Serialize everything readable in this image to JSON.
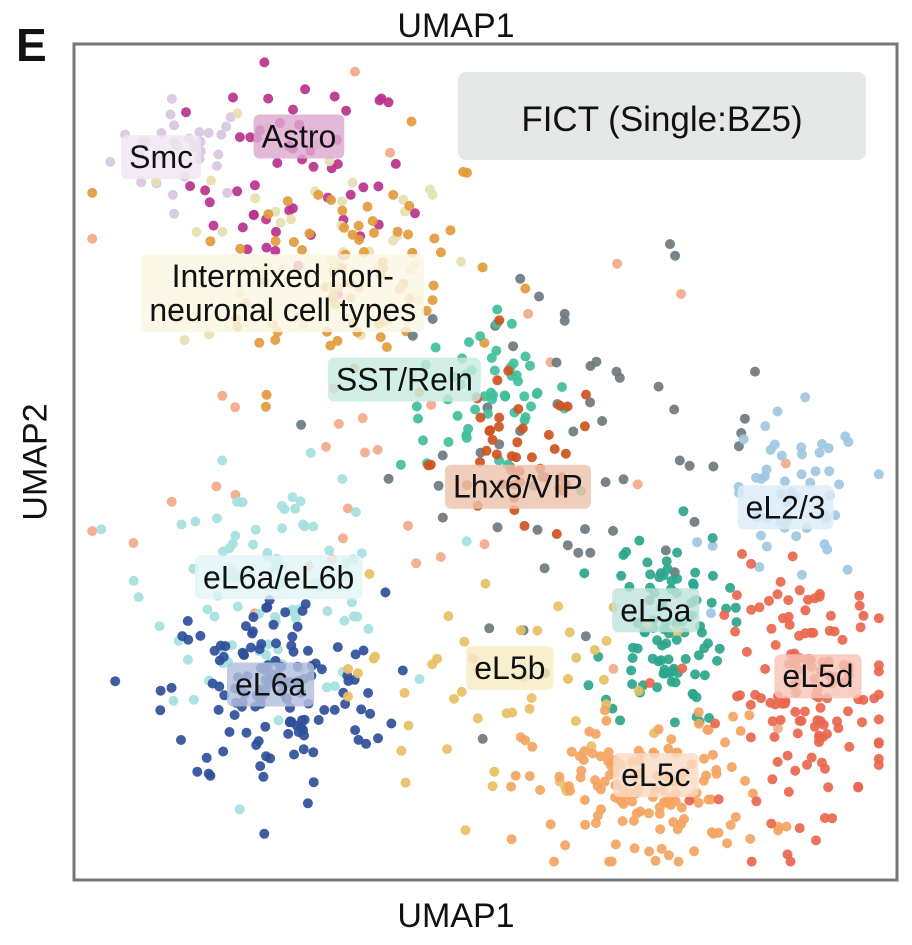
{
  "panel_letter": "E",
  "chart_data": {
    "type": "scatter",
    "title": "FICT (Single:BZ5)",
    "xlabel": "UMAP1",
    "xlabel_top": "UMAP1",
    "ylabel": "UMAP2",
    "xlim": [
      0,
      100
    ],
    "ylim": [
      0,
      100
    ],
    "grid": false,
    "ticks": false,
    "title_box_color": "#e6e8e8",
    "clusters": [
      {
        "name": "Smc",
        "label": "Smc",
        "color": "#d8c6df",
        "label_bg": "#efe5f2",
        "center": [
          13,
          88
        ],
        "spread": [
          6,
          4
        ],
        "n": 30
      },
      {
        "name": "Astro",
        "label": "Astro",
        "color": "#b8338e",
        "label_bg": "#dda8cf",
        "center": [
          27,
          84
        ],
        "spread": [
          9,
          9
        ],
        "n": 55
      },
      {
        "name": "Intermixed",
        "label": "Intermixed non-\nneuronal cell types",
        "color": "#e6e0b0",
        "label_bg": "#faf7e3",
        "center": [
          30,
          76
        ],
        "spread": [
          12,
          10
        ],
        "n": 40
      },
      {
        "name": "Oligo-like",
        "label": "",
        "color": "#e29a3c",
        "label_bg": "",
        "center": [
          33,
          74
        ],
        "spread": [
          13,
          10
        ],
        "n": 70
      },
      {
        "name": "Salmon-scatter",
        "label": "",
        "color": "#f4a98a",
        "label_bg": "",
        "center": [
          35,
          55
        ],
        "spread": [
          25,
          25
        ],
        "n": 45
      },
      {
        "name": "Other-grey",
        "label": "",
        "color": "#6e7880",
        "label_bg": "",
        "center": [
          62,
          52
        ],
        "spread": [
          16,
          14
        ],
        "n": 60
      },
      {
        "name": "SST/Reln",
        "label": "SST/Reln",
        "color": "#3fbf9a",
        "label_bg": "#c8ebe0",
        "center": [
          50,
          58
        ],
        "spread": [
          7,
          6
        ],
        "n": 55
      },
      {
        "name": "Lhx6/VIP",
        "label": "Lhx6/VIP",
        "color": "#cf531f",
        "label_bg": "#eec2ad",
        "center": [
          54,
          50
        ],
        "spread": [
          7,
          7
        ],
        "n": 45
      },
      {
        "name": "eL2/3",
        "label": "eL2/3",
        "color": "#9fc7e3",
        "label_bg": "#dcebf6",
        "center": [
          88,
          45
        ],
        "spread": [
          6,
          7
        ],
        "n": 55
      },
      {
        "name": "eL6a/eL6b",
        "label": "eL6a/eL6b",
        "color": "#a6dfe0",
        "label_bg": "#e2f4f5",
        "center": [
          24,
          35
        ],
        "spread": [
          10,
          9
        ],
        "n": 95
      },
      {
        "name": "eL6a",
        "label": "eL6a",
        "color": "#2f4f9a",
        "label_bg": "#b2bfdd",
        "center": [
          24,
          22
        ],
        "spread": [
          9,
          8
        ],
        "n": 140
      },
      {
        "name": "eL5a",
        "label": "eL5a",
        "color": "#2ba58c",
        "label_bg": "#bfe3dc",
        "center": [
          72,
          30
        ],
        "spread": [
          5,
          8
        ],
        "n": 95
      },
      {
        "name": "eL5b",
        "label": "eL5b",
        "color": "#e8c065",
        "label_bg": "#f7ebc3",
        "center": [
          52,
          22
        ],
        "spread": [
          13,
          10
        ],
        "n": 50
      },
      {
        "name": "eL5c",
        "label": "eL5c",
        "color": "#f4a461",
        "label_bg": "#fadcc6",
        "center": [
          70,
          10
        ],
        "spread": [
          10,
          6
        ],
        "n": 140
      },
      {
        "name": "eL5d",
        "label": "eL5d",
        "color": "#e9674e",
        "label_bg": "#f5c4b8",
        "center": [
          90,
          22
        ],
        "spread": [
          7,
          10
        ],
        "n": 140
      }
    ],
    "labels": [
      {
        "text": "Smc",
        "bg": "#efe5f2",
        "at": [
          10,
          87
        ]
      },
      {
        "text": "Astro",
        "bg": "#dda8cf",
        "at": [
          27,
          89.5
        ]
      },
      {
        "text": "Intermixed non-",
        "text2": "neuronal cell types",
        "bg": "#faf7e3",
        "at": [
          25,
          70.5
        ]
      },
      {
        "text": "SST/Reln",
        "bg": "#c8ebe0",
        "at": [
          40,
          60
        ]
      },
      {
        "text": "Lhx6/VIP",
        "bg": "#eec2ad",
        "at": [
          54,
          47
        ]
      },
      {
        "text": "eL2/3",
        "bg": "#dcebf6",
        "at": [
          87,
          44.5
        ]
      },
      {
        "text": "eL6a/eL6b",
        "bg": "#e2f4f5",
        "at": [
          24.5,
          36
        ]
      },
      {
        "text": "eL6a",
        "bg": "#b2bfdd",
        "at": [
          23.5,
          23
        ]
      },
      {
        "text": "eL5a",
        "bg": "#bfe3dc",
        "at": [
          71,
          32
        ]
      },
      {
        "text": "eL5b",
        "bg": "#f7ebc3",
        "at": [
          53,
          25
        ]
      },
      {
        "text": "eL5c",
        "bg": "#fadcc6",
        "at": [
          71,
          12
        ]
      },
      {
        "text": "eL5d",
        "bg": "#f5c4b8",
        "at": [
          91,
          24
        ]
      }
    ]
  }
}
